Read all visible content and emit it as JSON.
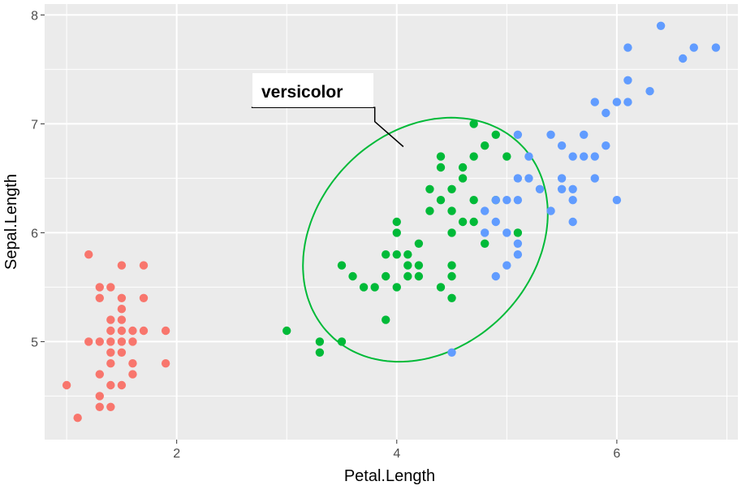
{
  "chart_data": {
    "type": "scatter",
    "xlabel": "Petal.Length",
    "ylabel": "Sepal.Length",
    "xlim": [
      0.8,
      7.1
    ],
    "ylim": [
      4.1,
      8.1
    ],
    "x_ticks": [
      2,
      4,
      6
    ],
    "y_ticks": [
      5,
      6,
      7,
      8
    ],
    "x_ticks_label": [
      "2",
      "4",
      "6"
    ],
    "y_ticks_label": [
      "5",
      "6",
      "7",
      "8"
    ],
    "grid": true,
    "legend": "none",
    "background": "#ebebeb",
    "series": [
      {
        "color": "#f8766d",
        "points": [
          [
            1.0,
            4.6
          ],
          [
            1.1,
            4.3
          ],
          [
            1.2,
            5.8
          ],
          [
            1.2,
            5.0
          ],
          [
            1.3,
            5.5
          ],
          [
            1.3,
            5.4
          ],
          [
            1.3,
            5.0
          ],
          [
            1.3,
            4.7
          ],
          [
            1.3,
            4.5
          ],
          [
            1.3,
            4.4
          ],
          [
            1.4,
            5.5
          ],
          [
            1.4,
            5.2
          ],
          [
            1.4,
            5.1
          ],
          [
            1.4,
            5.0
          ],
          [
            1.4,
            4.9
          ],
          [
            1.4,
            4.8
          ],
          [
            1.4,
            4.6
          ],
          [
            1.4,
            4.4
          ],
          [
            1.5,
            5.7
          ],
          [
            1.5,
            5.4
          ],
          [
            1.5,
            5.3
          ],
          [
            1.5,
            5.2
          ],
          [
            1.5,
            5.1
          ],
          [
            1.5,
            5.0
          ],
          [
            1.5,
            4.9
          ],
          [
            1.5,
            4.6
          ],
          [
            1.6,
            5.1
          ],
          [
            1.6,
            5.0
          ],
          [
            1.6,
            4.8
          ],
          [
            1.6,
            4.7
          ],
          [
            1.7,
            5.7
          ],
          [
            1.7,
            5.4
          ],
          [
            1.7,
            5.1
          ],
          [
            1.9,
            5.1
          ],
          [
            1.9,
            4.8
          ]
        ]
      },
      {
        "color": "#00ba38",
        "points": [
          [
            3.0,
            5.1
          ],
          [
            3.3,
            5.0
          ],
          [
            3.3,
            4.9
          ],
          [
            3.5,
            5.7
          ],
          [
            3.5,
            5.0
          ],
          [
            3.6,
            5.6
          ],
          [
            3.7,
            5.5
          ],
          [
            3.8,
            5.5
          ],
          [
            3.9,
            5.8
          ],
          [
            3.9,
            5.6
          ],
          [
            3.9,
            5.2
          ],
          [
            4.0,
            6.1
          ],
          [
            4.0,
            6.0
          ],
          [
            4.0,
            5.8
          ],
          [
            4.0,
            5.5
          ],
          [
            4.1,
            5.8
          ],
          [
            4.1,
            5.7
          ],
          [
            4.1,
            5.6
          ],
          [
            4.2,
            5.9
          ],
          [
            4.2,
            5.7
          ],
          [
            4.2,
            5.6
          ],
          [
            4.3,
            6.4
          ],
          [
            4.3,
            6.2
          ],
          [
            4.4,
            6.7
          ],
          [
            4.4,
            6.6
          ],
          [
            4.4,
            6.3
          ],
          [
            4.4,
            5.5
          ],
          [
            4.5,
            6.4
          ],
          [
            4.5,
            6.2
          ],
          [
            4.5,
            6.0
          ],
          [
            4.5,
            5.7
          ],
          [
            4.5,
            5.6
          ],
          [
            4.5,
            5.4
          ],
          [
            4.6,
            6.6
          ],
          [
            4.6,
            6.5
          ],
          [
            4.6,
            6.1
          ],
          [
            4.7,
            7.0
          ],
          [
            4.7,
            6.7
          ],
          [
            4.7,
            6.3
          ],
          [
            4.7,
            6.1
          ],
          [
            4.8,
            6.8
          ],
          [
            4.8,
            5.9
          ],
          [
            4.9,
            6.9
          ],
          [
            4.9,
            6.3
          ],
          [
            5.0,
            6.7
          ],
          [
            5.1,
            6.0
          ]
        ]
      },
      {
        "color": "#619cff",
        "points": [
          [
            4.5,
            4.9
          ],
          [
            4.8,
            6.2
          ],
          [
            4.8,
            6.0
          ],
          [
            4.9,
            6.3
          ],
          [
            4.9,
            6.1
          ],
          [
            4.9,
            5.6
          ],
          [
            5.0,
            6.3
          ],
          [
            5.0,
            6.0
          ],
          [
            5.0,
            5.7
          ],
          [
            5.1,
            6.9
          ],
          [
            5.1,
            6.5
          ],
          [
            5.1,
            6.3
          ],
          [
            5.1,
            5.9
          ],
          [
            5.1,
            5.8
          ],
          [
            5.2,
            6.7
          ],
          [
            5.2,
            6.5
          ],
          [
            5.3,
            6.4
          ],
          [
            5.4,
            6.9
          ],
          [
            5.4,
            6.2
          ],
          [
            5.5,
            6.8
          ],
          [
            5.5,
            6.5
          ],
          [
            5.5,
            6.4
          ],
          [
            5.6,
            6.7
          ],
          [
            5.6,
            6.4
          ],
          [
            5.6,
            6.3
          ],
          [
            5.6,
            6.1
          ],
          [
            5.7,
            6.9
          ],
          [
            5.7,
            6.7
          ],
          [
            5.8,
            7.2
          ],
          [
            5.8,
            6.7
          ],
          [
            5.8,
            6.5
          ],
          [
            5.9,
            7.1
          ],
          [
            5.9,
            6.8
          ],
          [
            6.0,
            7.2
          ],
          [
            6.0,
            6.3
          ],
          [
            6.1,
            7.7
          ],
          [
            6.1,
            7.4
          ],
          [
            6.1,
            7.2
          ],
          [
            6.3,
            7.3
          ],
          [
            6.4,
            7.9
          ],
          [
            6.6,
            7.6
          ],
          [
            6.7,
            7.7
          ],
          [
            6.9,
            7.7
          ]
        ]
      }
    ],
    "annotations": [
      {
        "text": "versicolor",
        "ellipse": {
          "cx": 4.26,
          "cy": 5.936,
          "rx": 1.23,
          "ry": 0.99,
          "angle_deg": 46,
          "color": "#00ba38"
        },
        "label_pos": [
          3.2,
          7.29
        ],
        "pointer": [
          [
            2.68,
            7.15
          ],
          [
            3.8,
            7.15
          ],
          [
            3.8,
            7.02
          ],
          [
            4.06,
            6.79
          ]
        ]
      }
    ]
  }
}
